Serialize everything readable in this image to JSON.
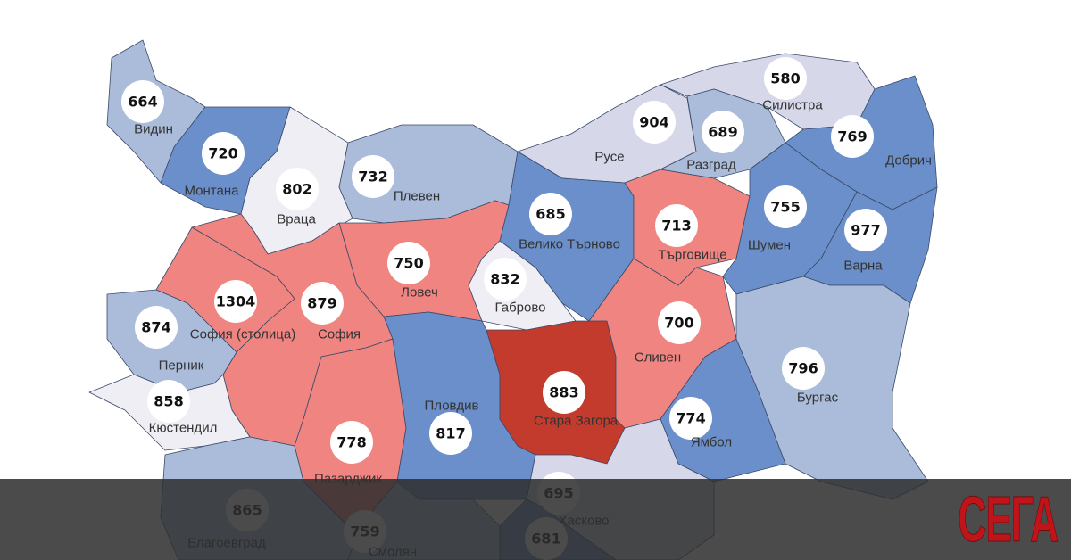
{
  "colors": {
    "dark_blue": "#6b8fca",
    "light_blue": "#abbcdb",
    "lavender": "#d6d7e9",
    "pale": "#eeeef4",
    "pink": "#ef8480",
    "dark_red": "#c23b2d",
    "overlay": "#2d2d2d",
    "logo": "#c0141b"
  },
  "regions": [
    {
      "name": "Видин",
      "value": "664",
      "color": "#abbcdb"
    },
    {
      "name": "Монтана",
      "value": "720",
      "color": "#6b8fca"
    },
    {
      "name": "Враца",
      "value": "802",
      "color": "#eeeef4"
    },
    {
      "name": "Плевен",
      "value": "732",
      "color": "#abbcdb"
    },
    {
      "name": "Русе",
      "value": "904",
      "color": "#d6d7e9"
    },
    {
      "name": "Силистра",
      "value": "580",
      "color": "#d6d7e9"
    },
    {
      "name": "Разград",
      "value": "689",
      "color": "#abbcdb"
    },
    {
      "name": "Добрич",
      "value": "769",
      "color": "#6b8fca"
    },
    {
      "name": "Велико Търново",
      "value": "685",
      "color": "#6b8fca"
    },
    {
      "name": "Търговище",
      "value": "713",
      "color": "#ef8480"
    },
    {
      "name": "Шумен",
      "value": "755",
      "color": "#6b8fca"
    },
    {
      "name": "Варна",
      "value": "977",
      "color": "#6b8fca"
    },
    {
      "name": "Ловеч",
      "value": "750",
      "color": "#ef8480"
    },
    {
      "name": "Габрово",
      "value": "832",
      "color": "#eeeef4"
    },
    {
      "name": "София",
      "value": "879",
      "color": "#ef8480"
    },
    {
      "name": "София (столица)",
      "value": "1304",
      "color": "#ef8480"
    },
    {
      "name": "Перник",
      "value": "874",
      "color": "#abbcdb"
    },
    {
      "name": "Кюстендил",
      "value": "858",
      "color": "#eeeef4"
    },
    {
      "name": "Пазарджик",
      "value": "778",
      "color": "#ef8480"
    },
    {
      "name": "Пловдив",
      "value": "817",
      "color": "#6b8fca"
    },
    {
      "name": "Стара Загора",
      "value": "883",
      "color": "#c23b2d"
    },
    {
      "name": "Сливен",
      "value": "700",
      "color": "#ef8480"
    },
    {
      "name": "Ямбол",
      "value": "774",
      "color": "#6b8fca"
    },
    {
      "name": "Бургас",
      "value": "796",
      "color": "#abbcdb"
    },
    {
      "name": "Хасково",
      "value": "695",
      "color": "#d6d7e9"
    },
    {
      "name": "Благоевград",
      "value": "865",
      "color": "#abbcdb"
    },
    {
      "name": "Смолян",
      "value": "759",
      "color": "#abbcdb"
    },
    {
      "name": "",
      "value": "681",
      "color": "#6b8fca"
    }
  ],
  "logo": {
    "text": "СЕГА"
  }
}
